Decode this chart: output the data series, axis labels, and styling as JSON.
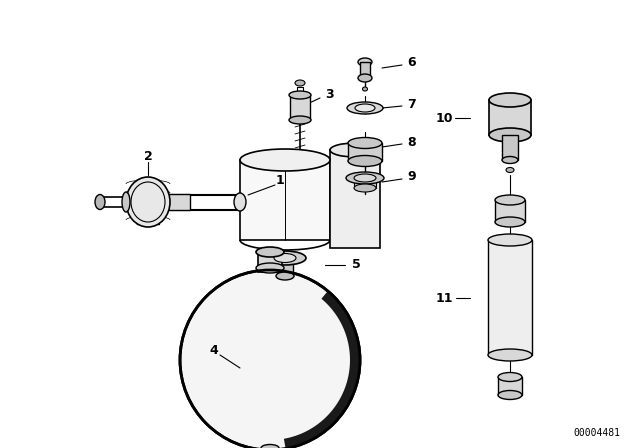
{
  "bg_color": "#ffffff",
  "line_color": "#000000",
  "part_number": "00004481",
  "figsize": [
    6.4,
    4.48
  ],
  "dpi": 100
}
